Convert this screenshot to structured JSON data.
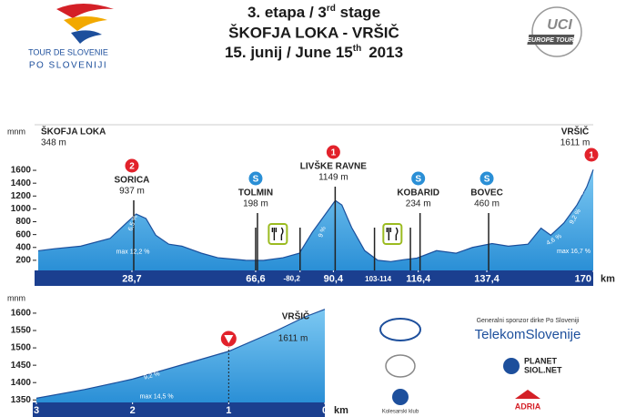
{
  "header": {
    "stage": "3. etapa / 3",
    "stage_sup": "rd",
    "stage_end": " stage",
    "route": "ŠKOFJA LOKA - VRŠIČ",
    "date": "15. junij / June 15",
    "date_sup": "th",
    "year": "2013"
  },
  "logos": {
    "tour": "TOUR DE SLOVENIE",
    "tour_sub": "PO SLOVENIJI",
    "uci": "UCI",
    "uci_sub": "EUROPE TOUR"
  },
  "sponsors": {
    "general": "Generalni sponzor dirke Po Sloveniji",
    "telekom": "TelekomSlovenije",
    "planet": "PLANET",
    "siol": "SIOL.NET",
    "adria": "ADRIA",
    "club": "Kolesarski klub"
  },
  "chart_data": [
    {
      "type": "area",
      "y_unit": "mnm",
      "x_unit": "km",
      "color": "#3fa9e8",
      "line_color": "#1b4f9c",
      "x": [
        0,
        5,
        13,
        22,
        27,
        30,
        33,
        36,
        40,
        44,
        50,
        55,
        63.5,
        69,
        75,
        80,
        84,
        89,
        91,
        93,
        96,
        100,
        104,
        108,
        112,
        116,
        122,
        128,
        133,
        139,
        144,
        150,
        154,
        157,
        161,
        165,
        168,
        170
      ],
      "values": [
        348,
        380,
        420,
        540,
        780,
        920,
        850,
        590,
        450,
        420,
        310,
        240,
        200,
        198,
        240,
        310,
        640,
        990,
        1130,
        1060,
        710,
        350,
        200,
        180,
        210,
        234,
        350,
        310,
        400,
        460,
        420,
        450,
        700,
        590,
        780,
        1060,
        1340,
        1611
      ],
      "xlim": [
        0,
        170
      ],
      "ylim": [
        0,
        1700
      ],
      "yticks": [
        200,
        400,
        600,
        800,
        1000,
        1200,
        1400,
        1600
      ],
      "xticks": [
        {
          "value": 28.7,
          "label": "28,7"
        },
        {
          "value": 66.6,
          "label": "66,6"
        },
        {
          "value": 80.2,
          "label": "-80,2"
        },
        {
          "value": 90.4,
          "label": "90,4"
        },
        {
          "value": 116.4,
          "label": "116,4"
        },
        {
          "value": 137.4,
          "label": "137,4"
        },
        170
      ],
      "start": {
        "name": "ŠKOFJA LOKA",
        "elev": "348 m"
      },
      "points": [
        {
          "x": 28.7,
          "badge": "2",
          "kind": "climb",
          "name": "SORICA",
          "elev": "937 m"
        },
        {
          "x": 66.6,
          "badge": "S",
          "kind": "sprint",
          "name": "TOLMIN",
          "elev": "198 m"
        },
        {
          "x": 90.4,
          "badge": "1",
          "kind": "climb",
          "name": "LIVŠKE RAVNE",
          "elev": "1149 m"
        },
        {
          "x": 116.4,
          "badge": "S",
          "kind": "sprint",
          "name": "KOBARID",
          "elev": "234 m"
        },
        {
          "x": 137.4,
          "badge": "S",
          "kind": "sprint",
          "name": "BOVEC",
          "elev": "460 m"
        },
        {
          "x": 170,
          "badge": "1",
          "kind": "climb",
          "name": "VRŠIČ",
          "elev": "1611 m"
        }
      ],
      "feed_zones": [
        [
          66.6,
          80.2
        ],
        [
          103,
          114
        ]
      ],
      "feed_zone_label": "103-114",
      "gradients": [
        "6,5 %",
        "max 12,2 %",
        "9 %",
        "4,6 %",
        "9,2 %",
        "8,8 %",
        "max 16,7 %"
      ]
    },
    {
      "type": "area",
      "y_unit": "mnm",
      "x_unit": "km",
      "color": "#3fa9e8",
      "line_color": "#1b4f9c",
      "x": [
        3,
        2.5,
        2,
        1.5,
        1,
        0.5,
        0.2,
        0
      ],
      "values": [
        1355,
        1380,
        1410,
        1450,
        1490,
        1550,
        1590,
        1611
      ],
      "xlim": [
        3,
        0
      ],
      "ylim": [
        1325,
        1625
      ],
      "yticks": [
        1350,
        1400,
        1450,
        1500,
        1550,
        1600
      ],
      "xticks": [
        3,
        2,
        1,
        0
      ],
      "finish": {
        "name": "VRŠIČ",
        "elev": "1611 m"
      },
      "marker_x": 1,
      "gradients": [
        "9,2 %",
        "max 14,5 %"
      ]
    }
  ]
}
